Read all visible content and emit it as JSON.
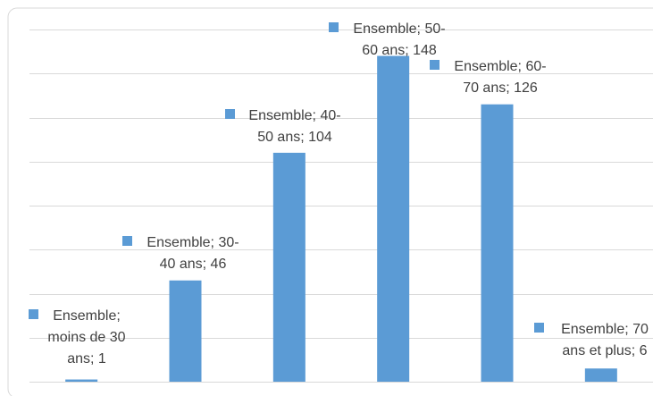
{
  "chart_data": {
    "type": "bar",
    "title": "",
    "xlabel": "",
    "ylabel": "",
    "ylim": [
      0,
      160
    ],
    "grid": true,
    "gridline_step": 20,
    "legend": "none",
    "bar_color": "#5B9BD5",
    "gridline_color": "#D9D9D9",
    "frame_color": "#D9D9D9",
    "series": [
      {
        "name": "Ensemble",
        "values": [
          1,
          46,
          104,
          148,
          126,
          6
        ]
      }
    ],
    "categories": [
      "moins de 30 ans",
      "30-40 ans",
      "40-50 ans",
      "50-60 ans",
      "60-70 ans",
      "70 ans et plus"
    ],
    "data_labels": [
      {
        "lines": [
          "Ensemble;",
          "moins de 30",
          "ans; 1"
        ]
      },
      {
        "lines": [
          "Ensemble; 30-",
          "40 ans; 46"
        ]
      },
      {
        "lines": [
          "Ensemble; 40-",
          "50 ans; 104"
        ]
      },
      {
        "lines": [
          "Ensemble; 50-",
          "60 ans; 148"
        ]
      },
      {
        "lines": [
          "Ensemble; 60-",
          "70 ans; 126"
        ]
      },
      {
        "lines": [
          "Ensemble; 70",
          "ans et plus; 6"
        ]
      }
    ]
  }
}
